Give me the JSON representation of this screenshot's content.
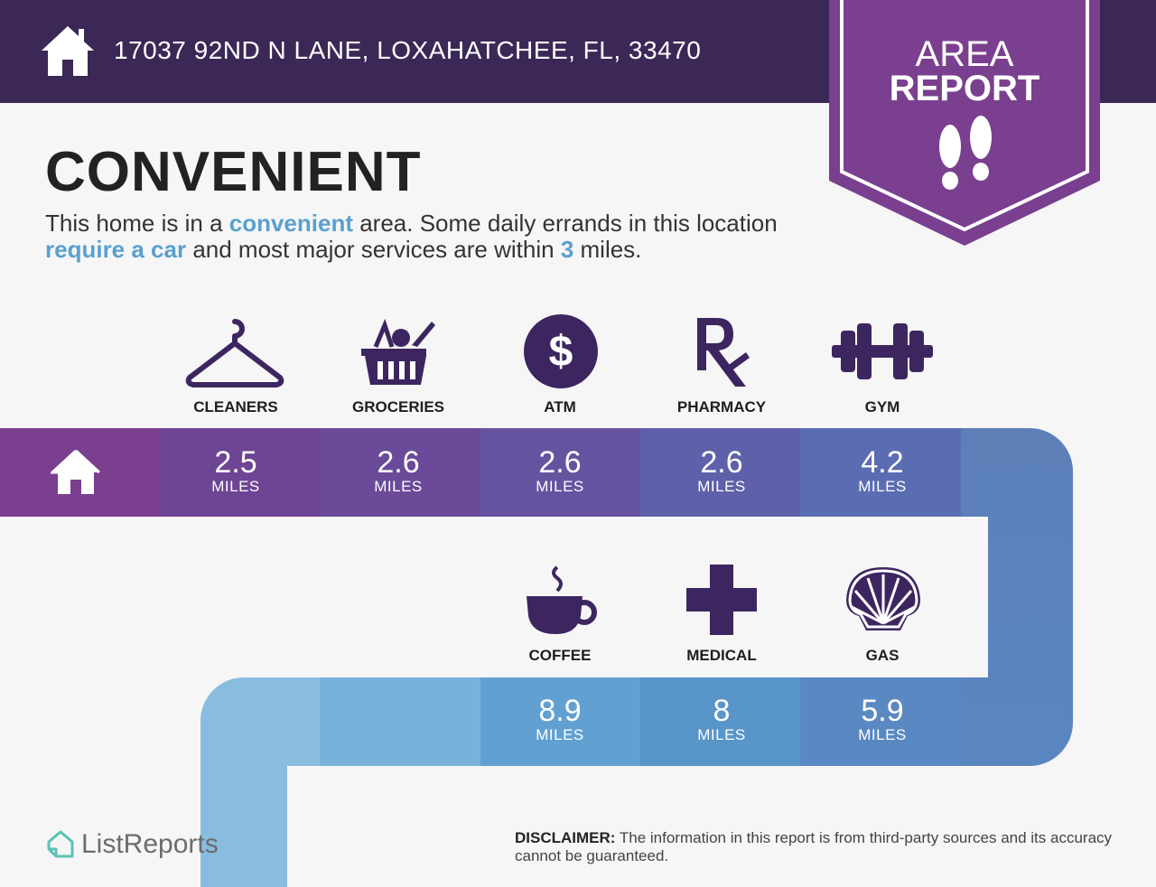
{
  "header": {
    "address": "17037 92ND N LANE, LOXAHATCHEE, FL, 33470",
    "badge_line1": "AREA",
    "badge_line2": "REPORT"
  },
  "title": "CONVENIENT",
  "description": {
    "p1": "This home is in a ",
    "h1": "convenient",
    "p2": " area. Some daily errands in this location ",
    "h2": "require a car",
    "p3": " and most major services are within ",
    "h3": "3",
    "p4": " miles."
  },
  "services_row1": [
    {
      "label": "CLEANERS",
      "icon": "hanger-icon",
      "distance": "2.5",
      "unit": "MILES"
    },
    {
      "label": "GROCERIES",
      "icon": "basket-icon",
      "distance": "2.6",
      "unit": "MILES"
    },
    {
      "label": "ATM",
      "icon": "dollar-icon",
      "distance": "2.6",
      "unit": "MILES"
    },
    {
      "label": "PHARMACY",
      "icon": "rx-icon",
      "distance": "2.6",
      "unit": "MILES"
    },
    {
      "label": "GYM",
      "icon": "dumbbell-icon",
      "distance": "4.2",
      "unit": "MILES"
    }
  ],
  "services_row2": [
    {
      "label": "COFFEE",
      "icon": "coffee-cup-icon",
      "distance": "8.9",
      "unit": "MILES"
    },
    {
      "label": "MEDICAL",
      "icon": "cross-icon",
      "distance": "8",
      "unit": "MILES"
    },
    {
      "label": "GAS",
      "icon": "shell-icon",
      "distance": "5.9",
      "unit": "MILES"
    }
  ],
  "footer": {
    "brand": "ListReports",
    "disclaimer_label": "DISCLAIMER:",
    "disclaimer_text": " The information in this report is from third-party sources and its accuracy cannot be guaranteed."
  },
  "colors": {
    "header_bg": "#3b2857",
    "badge_purple": "#7a3f8f",
    "highlight_blue": "#5aa0cf",
    "icon_purple": "#3d2660"
  }
}
